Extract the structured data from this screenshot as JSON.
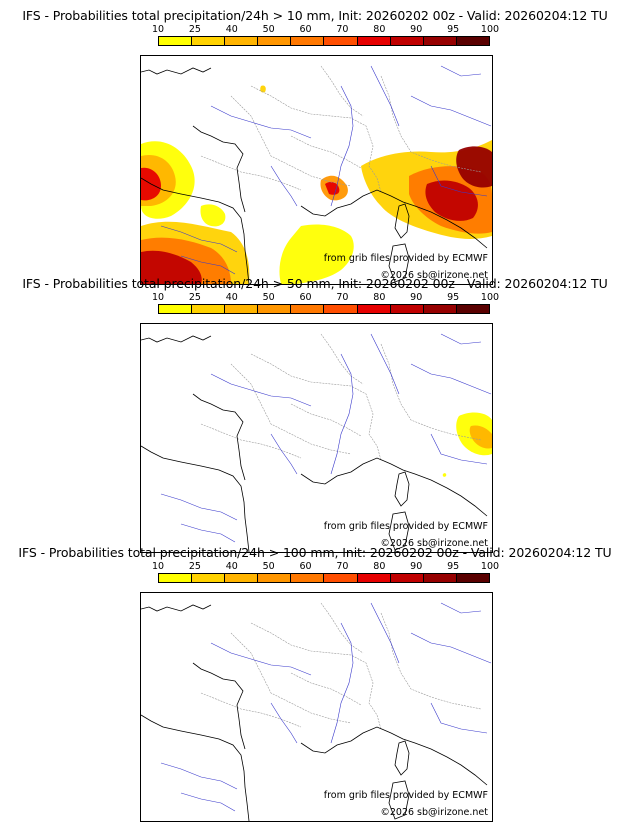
{
  "colorbar": {
    "labels": [
      "10",
      "25",
      "40",
      "50",
      "60",
      "70",
      "80",
      "90",
      "95",
      "100"
    ],
    "colors": [
      "#ffff00",
      "#ffd200",
      "#ffb400",
      "#ff9600",
      "#ff7800",
      "#ff4e00",
      "#e60000",
      "#c00000",
      "#960000",
      "#5a0000"
    ]
  },
  "credits": {
    "source": "from grib files provided by ECMWF",
    "copyright": "©2026 sb@irizone.net"
  },
  "panels": [
    {
      "title": "IFS - Probabilities total precipitation/24h > 10 mm, Init: 20260202 00z - Valid: 20260204:12 TU",
      "threshold": "10 mm"
    },
    {
      "title": "IFS - Probabilities total precipitation/24h > 50 mm, Init: 20260202 00z - Valid: 20260204:12 TU",
      "threshold": "50 mm"
    },
    {
      "title": "IFS - Probabilities total precipitation/24h > 100 mm, Init: 20260202 00z - Valid: 20260204:12 TU",
      "threshold": "100 mm"
    }
  ]
}
